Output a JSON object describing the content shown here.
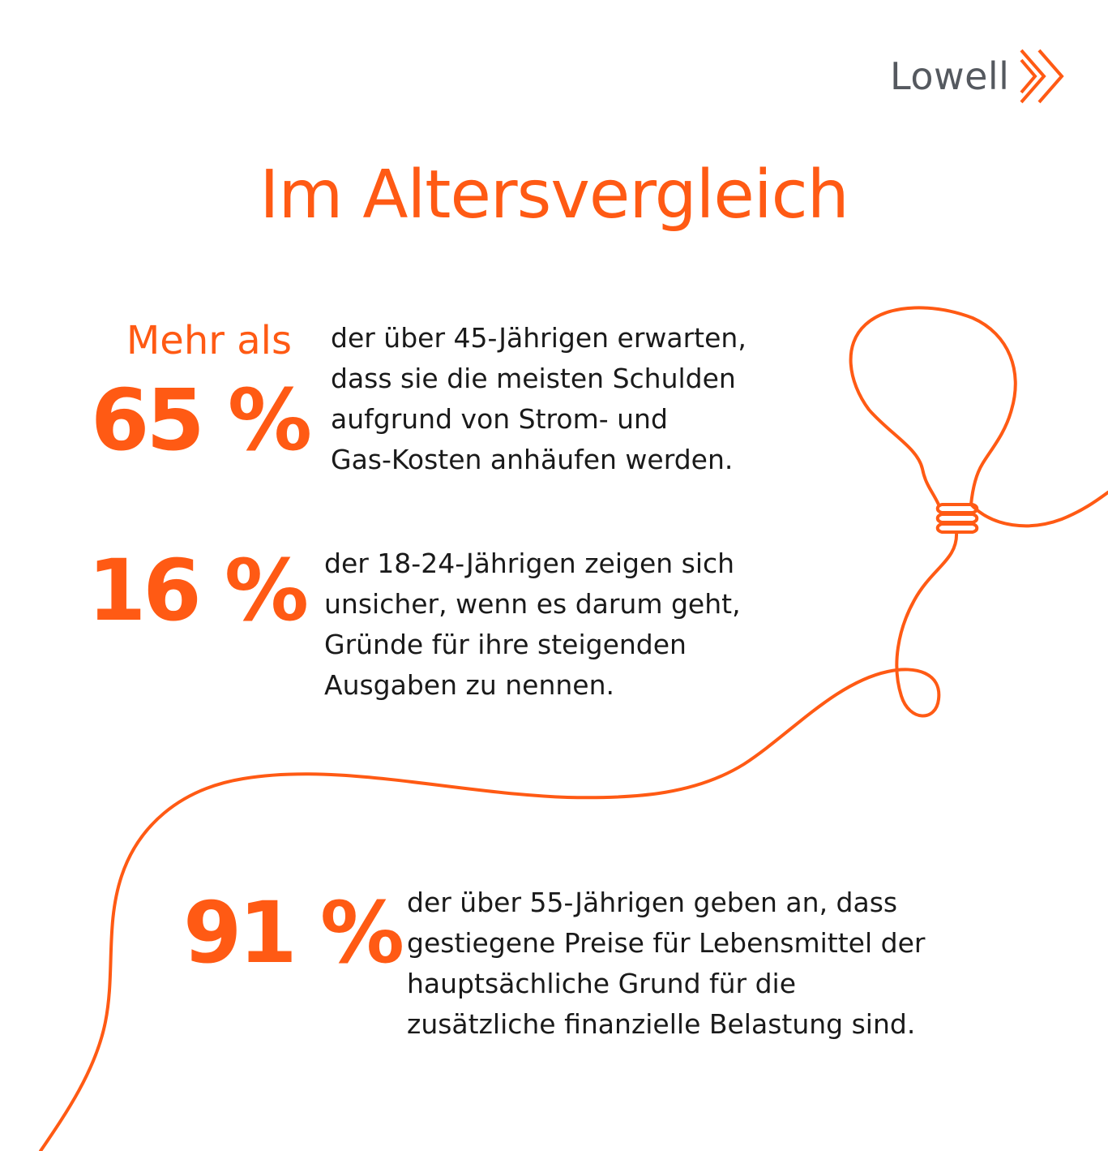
{
  "brand": {
    "logo_text": "Lowell",
    "logo_icon": "double-chevron-right-icon",
    "accent_color": "#ff5a14",
    "logo_text_color": "#55595f"
  },
  "title": "Im Altersvergleich",
  "stats": [
    {
      "prefix": "Mehr als",
      "value": "65 %",
      "lines": [
        "der über 45-Jährigen erwarten,",
        "dass sie die meisten Schulden",
        "aufgrund von Strom- und",
        "Gas-Kosten anhäufen werden."
      ]
    },
    {
      "value": "16 %",
      "lines": [
        "der 18-24-Jährigen zeigen sich",
        "unsicher, wenn es darum geht,",
        "Gründe für ihre steigenden",
        "Ausgaben zu nennen."
      ]
    },
    {
      "value": "91 %",
      "lines": [
        "der über 55-Jährigen geben an, dass",
        "gestiegene Preise für Lebensmittel der",
        "hauptsächliche Grund für die",
        "zusätzliche finanzielle Belastung sind."
      ]
    }
  ],
  "decoration": {
    "icon": "light-bulb-line-icon",
    "line_color": "#ff5a14"
  }
}
